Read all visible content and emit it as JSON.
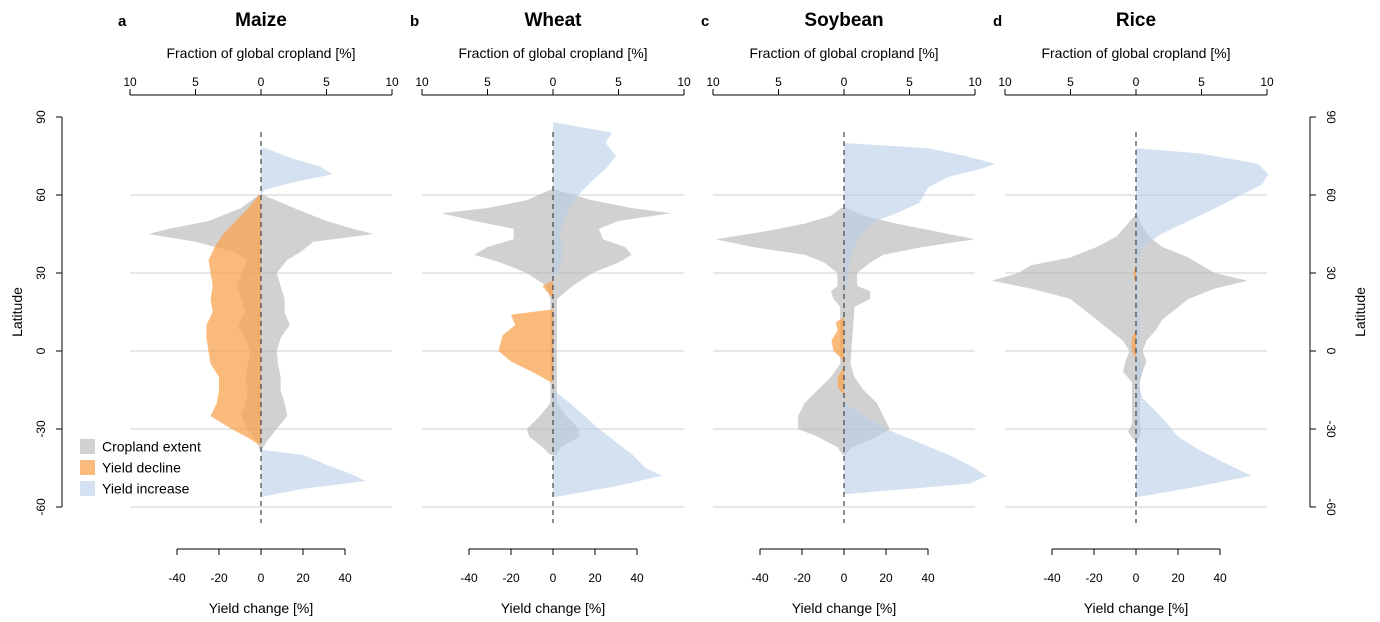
{
  "colors": {
    "cropland": "#b3b3b3",
    "decline": "#f7a34f",
    "increase": "#b8cde6",
    "grid": "#cfcfcf",
    "zero_line": "#444444"
  },
  "axes": {
    "top_label": "Fraction of global cropland [%]",
    "bottom_label": "Yield change [%]",
    "y_label": "Latitude",
    "top_ticks": [
      10,
      5,
      0,
      5,
      10
    ],
    "bottom_ticks": [
      -40,
      -20,
      0,
      20,
      40
    ],
    "y_ticks": [
      90,
      60,
      30,
      0,
      -30,
      -60
    ]
  },
  "legend": {
    "items": [
      {
        "key": "cropland",
        "label": "Cropland extent"
      },
      {
        "key": "decline",
        "label": "Yield decline"
      },
      {
        "key": "increase",
        "label": "Yield increase"
      }
    ]
  },
  "chart_data": [
    {
      "type": "area",
      "letter": "a",
      "title": "Maize",
      "xlim_fraction": [
        -10,
        10
      ],
      "xlim_yield": [
        -50,
        50
      ],
      "ylim": [
        -60,
        90
      ],
      "cropland": [
        {
          "lat": 60,
          "left": 0.2,
          "right": 0.2
        },
        {
          "lat": 55,
          "left": 1.5,
          "right": 2.5
        },
        {
          "lat": 50,
          "left": 4,
          "right": 5
        },
        {
          "lat": 47,
          "left": 7,
          "right": 7
        },
        {
          "lat": 45,
          "left": 8.6,
          "right": 8.6
        },
        {
          "lat": 42,
          "left": 5,
          "right": 4
        },
        {
          "lat": 38,
          "left": 2,
          "right": 3
        },
        {
          "lat": 35,
          "left": 1,
          "right": 2
        },
        {
          "lat": 30,
          "left": 1.5,
          "right": 1.2
        },
        {
          "lat": 25,
          "left": 1.8,
          "right": 1.5
        },
        {
          "lat": 20,
          "left": 1.5,
          "right": 1.8
        },
        {
          "lat": 15,
          "left": 1.2,
          "right": 1.8
        },
        {
          "lat": 10,
          "left": 1.8,
          "right": 2.2
        },
        {
          "lat": 5,
          "left": 1.2,
          "right": 1.5
        },
        {
          "lat": 0,
          "left": 0.8,
          "right": 1.2
        },
        {
          "lat": -5,
          "left": 1,
          "right": 1.3
        },
        {
          "lat": -10,
          "left": 1.2,
          "right": 1.5
        },
        {
          "lat": -15,
          "left": 1,
          "right": 1.5
        },
        {
          "lat": -20,
          "left": 1.2,
          "right": 1.8
        },
        {
          "lat": -25,
          "left": 1.5,
          "right": 2
        },
        {
          "lat": -30,
          "left": 1,
          "right": 1.2
        },
        {
          "lat": -35,
          "left": 0.3,
          "right": 0.4
        },
        {
          "lat": -38,
          "left": 0.1,
          "right": 0.1
        }
      ],
      "yield_decline": [
        {
          "lat": 60,
          "value": -1
        },
        {
          "lat": 55,
          "value": -6
        },
        {
          "lat": 50,
          "value": -12
        },
        {
          "lat": 45,
          "value": -18
        },
        {
          "lat": 40,
          "value": -22
        },
        {
          "lat": 35,
          "value": -25
        },
        {
          "lat": 30,
          "value": -24
        },
        {
          "lat": 25,
          "value": -23
        },
        {
          "lat": 20,
          "value": -24
        },
        {
          "lat": 15,
          "value": -23
        },
        {
          "lat": 10,
          "value": -26
        },
        {
          "lat": 5,
          "value": -26
        },
        {
          "lat": 0,
          "value": -25
        },
        {
          "lat": -5,
          "value": -24
        },
        {
          "lat": -10,
          "value": -20
        },
        {
          "lat": -15,
          "value": -20
        },
        {
          "lat": -20,
          "value": -21
        },
        {
          "lat": -25,
          "value": -24
        },
        {
          "lat": -30,
          "value": -14
        },
        {
          "lat": -33,
          "value": -7
        },
        {
          "lat": -36,
          "value": -1
        }
      ],
      "yield_increase": [
        {
          "lat": 78,
          "value": 2
        },
        {
          "lat": 74,
          "value": 15
        },
        {
          "lat": 71,
          "value": 28
        },
        {
          "lat": 68,
          "value": 34
        },
        {
          "lat": 65,
          "value": 16
        },
        {
          "lat": 62,
          "value": 2
        },
        {
          "lat": 60,
          "value": 0
        },
        {
          "lat": -38,
          "value": 0
        },
        {
          "lat": -40,
          "value": 20
        },
        {
          "lat": -44,
          "value": 32
        },
        {
          "lat": -47,
          "value": 42
        },
        {
          "lat": -50,
          "value": 50
        },
        {
          "lat": -53,
          "value": 20
        },
        {
          "lat": -56,
          "value": 1
        }
      ]
    },
    {
      "type": "area",
      "letter": "b",
      "title": "Wheat",
      "xlim_fraction": [
        -10,
        10
      ],
      "xlim_yield": [
        -50,
        50
      ],
      "ylim": [
        -60,
        90
      ],
      "cropland": [
        {
          "lat": 62,
          "left": 0.2,
          "right": 0.2
        },
        {
          "lat": 58,
          "left": 2,
          "right": 3
        },
        {
          "lat": 55,
          "left": 5,
          "right": 6
        },
        {
          "lat": 53,
          "left": 8.5,
          "right": 9
        },
        {
          "lat": 50,
          "left": 6,
          "right": 5
        },
        {
          "lat": 47,
          "left": 3,
          "right": 3.5
        },
        {
          "lat": 43,
          "left": 3,
          "right": 3.8
        },
        {
          "lat": 40,
          "left": 5,
          "right": 5.5
        },
        {
          "lat": 37,
          "left": 6,
          "right": 6
        },
        {
          "lat": 34,
          "left": 4,
          "right": 5
        },
        {
          "lat": 30,
          "left": 2,
          "right": 3
        },
        {
          "lat": 25,
          "left": 0.5,
          "right": 1.5
        },
        {
          "lat": 20,
          "left": 0.2,
          "right": 0.3
        },
        {
          "lat": -20,
          "left": 0.2,
          "right": 0.3
        },
        {
          "lat": -25,
          "left": 1,
          "right": 1
        },
        {
          "lat": -30,
          "left": 2,
          "right": 2
        },
        {
          "lat": -33,
          "left": 1.8,
          "right": 2
        },
        {
          "lat": -37,
          "left": 0.8,
          "right": 0.6
        },
        {
          "lat": -40,
          "left": 0.2,
          "right": 0.2
        }
      ],
      "yield_decline": [
        {
          "lat": 27,
          "value": 0
        },
        {
          "lat": 25,
          "value": -5
        },
        {
          "lat": 22,
          "value": -2
        },
        {
          "lat": 20,
          "value": 0
        },
        {
          "lat": 16,
          "value": 0
        },
        {
          "lat": 14,
          "value": -20
        },
        {
          "lat": 10,
          "value": -18
        },
        {
          "lat": 6,
          "value": -24
        },
        {
          "lat": 0,
          "value": -26
        },
        {
          "lat": -4,
          "value": -20
        },
        {
          "lat": -8,
          "value": -10
        },
        {
          "lat": -12,
          "value": -1
        }
      ],
      "yield_increase": [
        {
          "lat": 88,
          "value": 0
        },
        {
          "lat": 84,
          "value": 28
        },
        {
          "lat": 80,
          "value": 25
        },
        {
          "lat": 75,
          "value": 30
        },
        {
          "lat": 70,
          "value": 25
        },
        {
          "lat": 65,
          "value": 18
        },
        {
          "lat": 60,
          "value": 12
        },
        {
          "lat": 55,
          "value": 8
        },
        {
          "lat": 50,
          "value": 5
        },
        {
          "lat": 45,
          "value": 3
        },
        {
          "lat": 40,
          "value": 5
        },
        {
          "lat": 35,
          "value": 4
        },
        {
          "lat": 30,
          "value": 2
        },
        {
          "lat": 28,
          "value": 0
        },
        {
          "lat": -15,
          "value": 0
        },
        {
          "lat": -20,
          "value": 8
        },
        {
          "lat": -25,
          "value": 15
        },
        {
          "lat": -30,
          "value": 22
        },
        {
          "lat": -35,
          "value": 30
        },
        {
          "lat": -40,
          "value": 38
        },
        {
          "lat": -45,
          "value": 44
        },
        {
          "lat": -48,
          "value": 52
        },
        {
          "lat": -52,
          "value": 30
        },
        {
          "lat": -56,
          "value": 2
        }
      ]
    },
    {
      "type": "area",
      "letter": "c",
      "title": "Soybean",
      "xlim_fraction": [
        -10,
        10
      ],
      "xlim_yield": [
        -50,
        50
      ],
      "ylim": [
        -60,
        90
      ],
      "cropland": [
        {
          "lat": 55,
          "left": 0.2,
          "right": 0.2
        },
        {
          "lat": 52,
          "left": 1,
          "right": 1.5
        },
        {
          "lat": 49,
          "left": 3,
          "right": 4
        },
        {
          "lat": 46,
          "left": 6,
          "right": 7
        },
        {
          "lat": 43,
          "left": 9.8,
          "right": 10
        },
        {
          "lat": 40,
          "left": 7,
          "right": 6
        },
        {
          "lat": 37,
          "left": 3,
          "right": 3
        },
        {
          "lat": 34,
          "left": 1.5,
          "right": 2
        },
        {
          "lat": 30,
          "left": 0.5,
          "right": 1
        },
        {
          "lat": 25,
          "left": 0.5,
          "right": 1
        },
        {
          "lat": 23,
          "left": 1,
          "right": 2
        },
        {
          "lat": 20,
          "left": 0.8,
          "right": 2
        },
        {
          "lat": 17,
          "left": 0.3,
          "right": 0.8
        },
        {
          "lat": -5,
          "left": 0.3,
          "right": 0.5
        },
        {
          "lat": -10,
          "left": 1,
          "right": 0.8
        },
        {
          "lat": -15,
          "left": 2,
          "right": 1.5
        },
        {
          "lat": -20,
          "left": 3,
          "right": 2.5
        },
        {
          "lat": -25,
          "left": 3.5,
          "right": 3
        },
        {
          "lat": -30,
          "left": 3.5,
          "right": 3.5
        },
        {
          "lat": -33,
          "left": 2,
          "right": 2.5
        },
        {
          "lat": -37,
          "left": 0.5,
          "right": 0.6
        },
        {
          "lat": -40,
          "left": 0.1,
          "right": 0.1
        }
      ],
      "yield_decline": [
        {
          "lat": 13,
          "value": 0
        },
        {
          "lat": 11,
          "value": -4
        },
        {
          "lat": 8,
          "value": -3
        },
        {
          "lat": 4,
          "value": -6
        },
        {
          "lat": 0,
          "value": -5
        },
        {
          "lat": -3,
          "value": -1
        },
        {
          "lat": -6,
          "value": 0
        },
        {
          "lat": -10,
          "value": -3
        },
        {
          "lat": -14,
          "value": -3
        },
        {
          "lat": -17,
          "value": 0
        }
      ],
      "yield_increase": [
        {
          "lat": 80,
          "value": 0
        },
        {
          "lat": 78,
          "value": 40
        },
        {
          "lat": 75,
          "value": 58
        },
        {
          "lat": 72,
          "value": 72
        },
        {
          "lat": 70,
          "value": 65
        },
        {
          "lat": 67,
          "value": 50
        },
        {
          "lat": 63,
          "value": 40
        },
        {
          "lat": 60,
          "value": 38
        },
        {
          "lat": 57,
          "value": 36
        },
        {
          "lat": 53,
          "value": 25
        },
        {
          "lat": 50,
          "value": 15
        },
        {
          "lat": 45,
          "value": 8
        },
        {
          "lat": 40,
          "value": 5
        },
        {
          "lat": 35,
          "value": 3
        },
        {
          "lat": 30,
          "value": 2
        },
        {
          "lat": 25,
          "value": 1
        },
        {
          "lat": 20,
          "value": 0
        },
        {
          "lat": -20,
          "value": 0
        },
        {
          "lat": -25,
          "value": 10
        },
        {
          "lat": -30,
          "value": 20
        },
        {
          "lat": -35,
          "value": 35
        },
        {
          "lat": -40,
          "value": 50
        },
        {
          "lat": -44,
          "value": 60
        },
        {
          "lat": -48,
          "value": 68
        },
        {
          "lat": -51,
          "value": 60
        },
        {
          "lat": -55,
          "value": 2
        }
      ]
    },
    {
      "type": "area",
      "letter": "d",
      "title": "Rice",
      "xlim_fraction": [
        -10,
        10
      ],
      "xlim_yield": [
        -50,
        50
      ],
      "ylim": [
        -60,
        90
      ],
      "cropland": [
        {
          "lat": 52,
          "left": 0.1,
          "right": 0.1
        },
        {
          "lat": 48,
          "left": 0.8,
          "right": 0.5
        },
        {
          "lat": 44,
          "left": 1.5,
          "right": 1
        },
        {
          "lat": 40,
          "left": 3,
          "right": 2
        },
        {
          "lat": 36,
          "left": 5,
          "right": 4
        },
        {
          "lat": 33,
          "left": 8,
          "right": 5
        },
        {
          "lat": 30,
          "left": 9,
          "right": 6
        },
        {
          "lat": 27,
          "left": 11,
          "right": 8.5
        },
        {
          "lat": 24,
          "left": 8,
          "right": 6
        },
        {
          "lat": 20,
          "left": 5,
          "right": 4
        },
        {
          "lat": 16,
          "left": 4,
          "right": 3
        },
        {
          "lat": 12,
          "left": 3,
          "right": 2
        },
        {
          "lat": 8,
          "left": 2,
          "right": 1.5
        },
        {
          "lat": 4,
          "left": 1,
          "right": 0.8
        },
        {
          "lat": 0,
          "left": 0.5,
          "right": 0.5
        },
        {
          "lat": -4,
          "left": 0.8,
          "right": 0.8
        },
        {
          "lat": -8,
          "left": 1,
          "right": 0.5
        },
        {
          "lat": -12,
          "left": 0.3,
          "right": 0.3
        },
        {
          "lat": -28,
          "left": 0.3,
          "right": 0.3
        },
        {
          "lat": -31,
          "left": 0.6,
          "right": 0.4
        },
        {
          "lat": -34,
          "left": 0.2,
          "right": 0.2
        }
      ],
      "yield_decline": [
        {
          "lat": 33,
          "value": 0
        },
        {
          "lat": 31,
          "value": -1
        },
        {
          "lat": 28,
          "value": -1
        },
        {
          "lat": 26,
          "value": 0
        },
        {
          "lat": 8,
          "value": 0
        },
        {
          "lat": 5,
          "value": -2
        },
        {
          "lat": 0,
          "value": -2
        },
        {
          "lat": -3,
          "value": 0
        }
      ],
      "yield_increase": [
        {
          "lat": 78,
          "value": 0
        },
        {
          "lat": 76,
          "value": 30
        },
        {
          "lat": 72,
          "value": 58
        },
        {
          "lat": 68,
          "value": 63
        },
        {
          "lat": 64,
          "value": 60
        },
        {
          "lat": 60,
          "value": 50
        },
        {
          "lat": 55,
          "value": 38
        },
        {
          "lat": 50,
          "value": 25
        },
        {
          "lat": 45,
          "value": 12
        },
        {
          "lat": 40,
          "value": 3
        },
        {
          "lat": 35,
          "value": 1
        },
        {
          "lat": 30,
          "value": 1
        },
        {
          "lat": 20,
          "value": 1
        },
        {
          "lat": 10,
          "value": 2
        },
        {
          "lat": 0,
          "value": 1
        },
        {
          "lat": -8,
          "value": 3
        },
        {
          "lat": -12,
          "value": 1
        },
        {
          "lat": -18,
          "value": 3
        },
        {
          "lat": -22,
          "value": 8
        },
        {
          "lat": -28,
          "value": 15
        },
        {
          "lat": -33,
          "value": 20
        },
        {
          "lat": -38,
          "value": 30
        },
        {
          "lat": -43,
          "value": 42
        },
        {
          "lat": -48,
          "value": 55
        },
        {
          "lat": -52,
          "value": 30
        },
        {
          "lat": -56,
          "value": 2
        }
      ]
    }
  ]
}
